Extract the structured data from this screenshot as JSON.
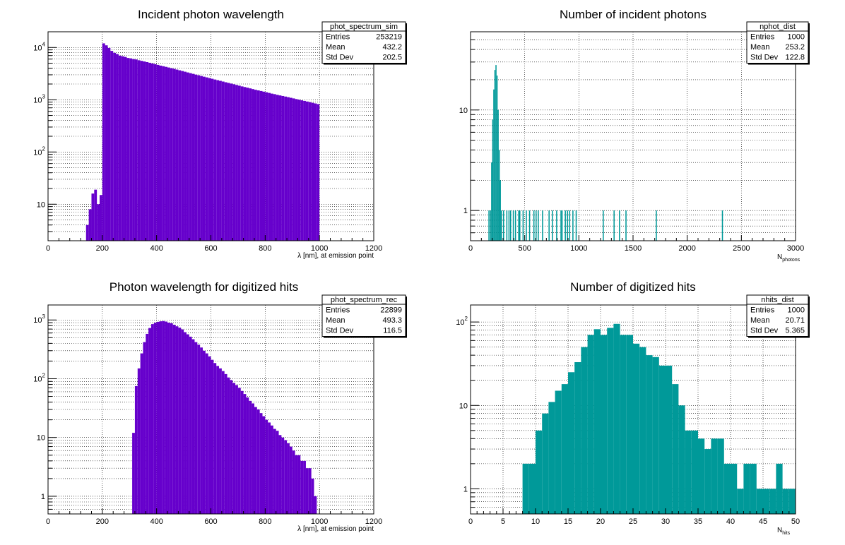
{
  "chart_data": [
    {
      "type": "bar",
      "name": "phot_spectrum_sim",
      "title": "Incident photon wavelength",
      "xlabel": "λ [nm], at emission point",
      "ylabel": "",
      "xlim": [
        0,
        1200
      ],
      "ylim": [
        2,
        20000
      ],
      "log_y": true,
      "grid": true,
      "fill_color": "#6600cc",
      "x_ticks": [
        "0",
        "200",
        "400",
        "600",
        "800",
        "1000",
        "1200"
      ],
      "y_ticks": [
        {
          "base": "10",
          "exp": ""
        },
        {
          "base": "10",
          "exp": "2"
        },
        {
          "base": "10",
          "exp": "3"
        },
        {
          "base": "10",
          "exp": "4"
        }
      ],
      "stats_box": {
        "name": "phot_spectrum_sim",
        "rows": [
          {
            "label": "Entries",
            "value": "253219"
          },
          {
            "label": "Mean",
            "value": "432.2"
          },
          {
            "label": "Std Dev",
            "value": "202.5"
          }
        ]
      },
      "bins": [
        [
          140,
          150,
          4
        ],
        [
          150,
          160,
          8
        ],
        [
          160,
          170,
          16
        ],
        [
          170,
          180,
          19
        ],
        [
          180,
          190,
          10
        ],
        [
          190,
          200,
          15
        ],
        [
          200,
          210,
          12000
        ],
        [
          210,
          220,
          11000
        ],
        [
          220,
          230,
          9800
        ],
        [
          230,
          240,
          8600
        ],
        [
          240,
          250,
          7900
        ],
        [
          250,
          260,
          7500
        ],
        [
          260,
          270,
          7000
        ],
        [
          270,
          280,
          6800
        ],
        [
          280,
          290,
          6600
        ],
        [
          290,
          300,
          6300
        ],
        [
          300,
          310,
          6200
        ],
        [
          310,
          320,
          6000
        ],
        [
          320,
          330,
          5900
        ],
        [
          330,
          340,
          5700
        ],
        [
          340,
          350,
          5550
        ],
        [
          350,
          360,
          5400
        ],
        [
          360,
          370,
          5250
        ],
        [
          370,
          380,
          5100
        ],
        [
          380,
          390,
          4950
        ],
        [
          390,
          400,
          4800
        ],
        [
          400,
          410,
          4650
        ],
        [
          410,
          420,
          4500
        ],
        [
          420,
          430,
          4380
        ],
        [
          430,
          440,
          4260
        ],
        [
          440,
          450,
          4140
        ],
        [
          450,
          460,
          4020
        ],
        [
          460,
          470,
          3900
        ],
        [
          470,
          480,
          3780
        ],
        [
          480,
          490,
          3660
        ],
        [
          490,
          500,
          3550
        ],
        [
          500,
          510,
          3440
        ],
        [
          510,
          520,
          3330
        ],
        [
          520,
          530,
          3230
        ],
        [
          530,
          540,
          3130
        ],
        [
          540,
          550,
          3030
        ],
        [
          550,
          560,
          2940
        ],
        [
          560,
          570,
          2850
        ],
        [
          570,
          580,
          2760
        ],
        [
          580,
          590,
          2680
        ],
        [
          590,
          600,
          2600
        ],
        [
          600,
          610,
          2520
        ],
        [
          610,
          620,
          2440
        ],
        [
          620,
          630,
          2370
        ],
        [
          630,
          640,
          2300
        ],
        [
          640,
          650,
          2230
        ],
        [
          650,
          660,
          2160
        ],
        [
          660,
          670,
          2100
        ],
        [
          670,
          680,
          2040
        ],
        [
          680,
          690,
          1980
        ],
        [
          690,
          700,
          1920
        ],
        [
          700,
          710,
          1860
        ],
        [
          710,
          720,
          1800
        ],
        [
          720,
          730,
          1750
        ],
        [
          730,
          740,
          1700
        ],
        [
          740,
          750,
          1650
        ],
        [
          750,
          760,
          1600
        ],
        [
          760,
          770,
          1550
        ],
        [
          770,
          780,
          1510
        ],
        [
          780,
          790,
          1470
        ],
        [
          790,
          800,
          1430
        ],
        [
          800,
          810,
          1390
        ],
        [
          810,
          820,
          1350
        ],
        [
          820,
          830,
          1310
        ],
        [
          830,
          840,
          1280
        ],
        [
          840,
          850,
          1240
        ],
        [
          850,
          860,
          1210
        ],
        [
          860,
          870,
          1180
        ],
        [
          870,
          880,
          1150
        ],
        [
          880,
          890,
          1120
        ],
        [
          890,
          900,
          1090
        ],
        [
          900,
          910,
          1060
        ],
        [
          910,
          920,
          1030
        ],
        [
          920,
          930,
          1000
        ],
        [
          930,
          940,
          975
        ],
        [
          940,
          950,
          950
        ],
        [
          950,
          960,
          925
        ],
        [
          960,
          970,
          900
        ],
        [
          970,
          980,
          875
        ],
        [
          980,
          990,
          850
        ],
        [
          990,
          1000,
          825
        ]
      ]
    },
    {
      "type": "bar",
      "name": "nphot_dist",
      "title": "Number of incident photons",
      "xlabel_main": "N",
      "xlabel_sub": "photons",
      "ylabel": "",
      "xlim": [
        0,
        3000
      ],
      "ylim": [
        0.5,
        60
      ],
      "log_y": true,
      "grid": true,
      "fill_color": "#009999",
      "x_ticks": [
        "0",
        "500",
        "1000",
        "1500",
        "2000",
        "2500",
        "3000"
      ],
      "y_ticks": [
        {
          "base": "1",
          "exp": ""
        },
        {
          "base": "10",
          "exp": ""
        }
      ],
      "stats_box": {
        "name": "nphot_dist",
        "rows": [
          {
            "label": "Entries",
            "value": "1000"
          },
          {
            "label": "Mean",
            "value": "253.2"
          },
          {
            "label": "Std Dev",
            "value": "122.8"
          }
        ]
      },
      "bins": [
        [
          165,
          175,
          1
        ],
        [
          180,
          190,
          1
        ],
        [
          190,
          200,
          3
        ],
        [
          200,
          210,
          8
        ],
        [
          210,
          220,
          16
        ],
        [
          220,
          230,
          25
        ],
        [
          230,
          240,
          28
        ],
        [
          240,
          250,
          22
        ],
        [
          250,
          260,
          10
        ],
        [
          260,
          270,
          4
        ],
        [
          270,
          280,
          2
        ],
        [
          280,
          290,
          1
        ],
        [
          300,
          310,
          1
        ],
        [
          330,
          340,
          1
        ],
        [
          350,
          360,
          1
        ],
        [
          365,
          375,
          1
        ],
        [
          390,
          400,
          1
        ],
        [
          410,
          420,
          1
        ],
        [
          440,
          450,
          1
        ],
        [
          450,
          460,
          1
        ],
        [
          480,
          490,
          1
        ],
        [
          510,
          520,
          1
        ],
        [
          540,
          550,
          1
        ],
        [
          580,
          590,
          1
        ],
        [
          600,
          610,
          1
        ],
        [
          620,
          630,
          1
        ],
        [
          660,
          670,
          1
        ],
        [
          720,
          730,
          1
        ],
        [
          750,
          760,
          1
        ],
        [
          790,
          800,
          1
        ],
        [
          830,
          840,
          1
        ],
        [
          840,
          850,
          1
        ],
        [
          870,
          880,
          1
        ],
        [
          890,
          900,
          1
        ],
        [
          910,
          920,
          1
        ],
        [
          940,
          950,
          1
        ],
        [
          970,
          980,
          1
        ],
        [
          1220,
          1230,
          1
        ],
        [
          1320,
          1330,
          1
        ],
        [
          1370,
          1380,
          1
        ],
        [
          1430,
          1440,
          1
        ],
        [
          1710,
          1720,
          1
        ],
        [
          2320,
          2330,
          1
        ]
      ]
    },
    {
      "type": "bar",
      "name": "phot_spectrum_rec",
      "title": "Photon wavelength for digitized hits",
      "xlabel": "λ [nm], at emission point",
      "ylabel": "",
      "xlim": [
        0,
        1200
      ],
      "ylim": [
        0.5,
        1800
      ],
      "log_y": true,
      "grid": true,
      "fill_color": "#6600cc",
      "x_ticks": [
        "0",
        "200",
        "400",
        "600",
        "800",
        "1000",
        "1200"
      ],
      "y_ticks": [
        {
          "base": "1",
          "exp": ""
        },
        {
          "base": "10",
          "exp": ""
        },
        {
          "base": "10",
          "exp": "2"
        },
        {
          "base": "10",
          "exp": "3"
        }
      ],
      "stats_box": {
        "name": "phot_spectrum_rec",
        "rows": [
          {
            "label": "Entries",
            "value": "22899"
          },
          {
            "label": "Mean",
            "value": "493.3"
          },
          {
            "label": "Std Dev",
            "value": "116.5"
          }
        ]
      },
      "bins": [
        [
          310,
          320,
          12
        ],
        [
          320,
          330,
          75
        ],
        [
          330,
          340,
          150
        ],
        [
          340,
          350,
          270
        ],
        [
          350,
          360,
          420
        ],
        [
          360,
          370,
          580
        ],
        [
          370,
          380,
          730
        ],
        [
          380,
          390,
          850
        ],
        [
          390,
          400,
          900
        ],
        [
          400,
          410,
          930
        ],
        [
          410,
          420,
          950
        ],
        [
          420,
          430,
          960
        ],
        [
          430,
          440,
          940
        ],
        [
          440,
          450,
          900
        ],
        [
          450,
          460,
          880
        ],
        [
          460,
          470,
          830
        ],
        [
          470,
          480,
          780
        ],
        [
          480,
          490,
          740
        ],
        [
          490,
          500,
          690
        ],
        [
          500,
          510,
          620
        ],
        [
          510,
          520,
          570
        ],
        [
          520,
          530,
          520
        ],
        [
          530,
          540,
          470
        ],
        [
          540,
          550,
          420
        ],
        [
          550,
          560,
          380
        ],
        [
          560,
          570,
          340
        ],
        [
          570,
          580,
          300
        ],
        [
          580,
          590,
          270
        ],
        [
          590,
          600,
          240
        ],
        [
          600,
          610,
          210
        ],
        [
          610,
          620,
          185
        ],
        [
          620,
          630,
          165
        ],
        [
          630,
          640,
          150
        ],
        [
          640,
          650,
          135
        ],
        [
          650,
          660,
          120
        ],
        [
          660,
          670,
          105
        ],
        [
          670,
          680,
          95
        ],
        [
          680,
          690,
          85
        ],
        [
          690,
          700,
          78
        ],
        [
          700,
          710,
          70
        ],
        [
          710,
          720,
          62
        ],
        [
          720,
          730,
          55
        ],
        [
          730,
          740,
          48
        ],
        [
          740,
          750,
          42
        ],
        [
          750,
          760,
          38
        ],
        [
          760,
          770,
          33
        ],
        [
          770,
          780,
          30
        ],
        [
          780,
          790,
          26
        ],
        [
          790,
          800,
          23
        ],
        [
          800,
          810,
          20
        ],
        [
          810,
          820,
          18
        ],
        [
          820,
          830,
          16
        ],
        [
          830,
          840,
          14
        ],
        [
          840,
          850,
          13
        ],
        [
          850,
          860,
          11
        ],
        [
          860,
          870,
          10
        ],
        [
          870,
          880,
          9
        ],
        [
          880,
          890,
          8
        ],
        [
          890,
          900,
          7
        ],
        [
          900,
          910,
          6
        ],
        [
          910,
          920,
          5
        ],
        [
          920,
          930,
          5
        ],
        [
          930,
          940,
          4
        ],
        [
          940,
          950,
          4
        ],
        [
          950,
          960,
          3
        ],
        [
          960,
          970,
          3
        ],
        [
          970,
          980,
          2
        ],
        [
          980,
          990,
          1
        ]
      ]
    },
    {
      "type": "bar",
      "name": "nhits_dist",
      "title": "Number of digitized hits",
      "xlabel_main": "N",
      "xlabel_sub": "hits",
      "ylabel": "",
      "xlim": [
        0,
        50
      ],
      "ylim": [
        0.5,
        160
      ],
      "log_y": true,
      "grid": true,
      "fill_color": "#009999",
      "x_ticks": [
        "0",
        "5",
        "10",
        "15",
        "20",
        "25",
        "30",
        "35",
        "40",
        "45",
        "50"
      ],
      "y_ticks": [
        {
          "base": "1",
          "exp": ""
        },
        {
          "base": "10",
          "exp": ""
        },
        {
          "base": "10",
          "exp": "2"
        }
      ],
      "stats_box": {
        "name": "nhits_dist",
        "rows": [
          {
            "label": "Entries",
            "value": "1000"
          },
          {
            "label": "Mean",
            "value": "20.71"
          },
          {
            "label": "Std Dev",
            "value": "5.365"
          }
        ]
      },
      "bins": [
        [
          8,
          9,
          2
        ],
        [
          9,
          10,
          2
        ],
        [
          10,
          11,
          5
        ],
        [
          11,
          12,
          8
        ],
        [
          12,
          13,
          11
        ],
        [
          13,
          14,
          15
        ],
        [
          14,
          15,
          18
        ],
        [
          15,
          16,
          25
        ],
        [
          16,
          17,
          33
        ],
        [
          17,
          18,
          50
        ],
        [
          18,
          19,
          70
        ],
        [
          19,
          20,
          82
        ],
        [
          20,
          21,
          70
        ],
        [
          21,
          22,
          85
        ],
        [
          22,
          23,
          95
        ],
        [
          23,
          24,
          70
        ],
        [
          24,
          25,
          70
        ],
        [
          25,
          26,
          55
        ],
        [
          26,
          27,
          50
        ],
        [
          27,
          28,
          40
        ],
        [
          28,
          29,
          38
        ],
        [
          29,
          30,
          30
        ],
        [
          30,
          31,
          30
        ],
        [
          31,
          32,
          18
        ],
        [
          32,
          33,
          10
        ],
        [
          33,
          34,
          5
        ],
        [
          34,
          35,
          5
        ],
        [
          35,
          36,
          4
        ],
        [
          36,
          37,
          3
        ],
        [
          37,
          38,
          4
        ],
        [
          38,
          39,
          4
        ],
        [
          39,
          40,
          2
        ],
        [
          40,
          41,
          2
        ],
        [
          41,
          42,
          1
        ],
        [
          42,
          43,
          2
        ],
        [
          43,
          44,
          2
        ],
        [
          44,
          45,
          1
        ],
        [
          45,
          46,
          1
        ],
        [
          46,
          47,
          1
        ],
        [
          47,
          48,
          2
        ],
        [
          48,
          49,
          1
        ],
        [
          49,
          50,
          1
        ]
      ]
    }
  ]
}
